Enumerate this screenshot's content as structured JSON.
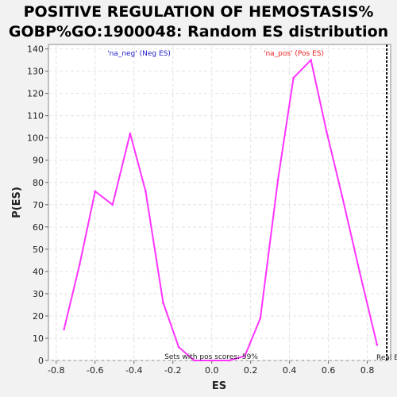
{
  "chart_data": {
    "type": "line",
    "title_lines": [
      "POSITIVE REGULATION OF HEMOSTASIS%",
      "GOBP%GO:1900048: Random ES distribution"
    ],
    "xlabel": "ES",
    "ylabel": "P(ES)",
    "xlim": [
      -0.84,
      0.92
    ],
    "ylim": [
      0,
      142
    ],
    "xticks": [
      -0.8,
      -0.6,
      -0.4,
      -0.2,
      0.0,
      0.2,
      0.4,
      0.6,
      0.8
    ],
    "xtick_labels": [
      "-0.8",
      "-0.6",
      "-0.4",
      "-0.2",
      "0.0",
      "0.2",
      "0.4",
      "0.6",
      "0.8"
    ],
    "yticks": [
      0,
      10,
      20,
      30,
      40,
      50,
      60,
      70,
      80,
      90,
      100,
      110,
      120,
      130,
      140
    ],
    "grid": true,
    "series": [
      {
        "color": "#ff33ff",
        "x": [
          -0.76,
          -0.68,
          -0.6,
          -0.51,
          -0.42,
          -0.34,
          -0.25,
          -0.17,
          -0.09,
          0.0,
          0.09,
          0.17,
          0.25,
          0.34,
          0.42,
          0.51,
          0.59,
          0.67,
          0.76,
          0.85
        ],
        "y": [
          14,
          43,
          76,
          70,
          102,
          76,
          26,
          6,
          0,
          0,
          0,
          2,
          19,
          81,
          127,
          135,
          103,
          74,
          40,
          7
        ]
      }
    ],
    "annotations": {
      "neg_label": "'na_neg' (Neg ES)",
      "neg_color": "#2222cc",
      "pos_label": "'na_pos' (Pos ES)",
      "pos_color": "#ee2222",
      "sets_text": "Sets with pos scores: 59%",
      "real_es_label": "Real ES",
      "real_es_x": 0.9
    }
  }
}
